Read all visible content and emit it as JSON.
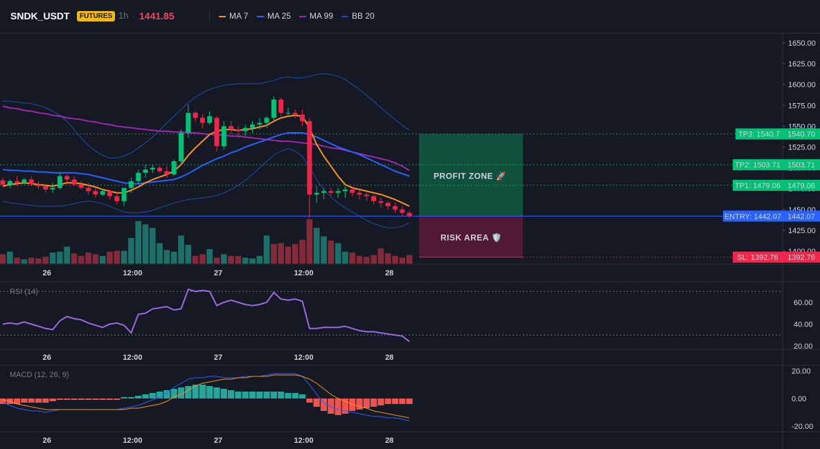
{
  "header": {
    "symbol": "SNDK_USDT",
    "badge": "FUTURES",
    "interval": "1h",
    "price": "1441.85",
    "legend": [
      {
        "label": "MA 7",
        "color": "#f7931a"
      },
      {
        "label": "MA 25",
        "color": "#2962ff"
      },
      {
        "label": "MA 99",
        "color": "#9c27b0"
      },
      {
        "label": "BB 20",
        "color": "#1e4fa8"
      }
    ]
  },
  "panes": {
    "rsi_label": "RSI (14)",
    "macd_label": "MACD (12, 26, 9)"
  },
  "zones": {
    "profit_label": "PROFIT ZONE 🚀",
    "risk_label": "RISK AREA 🛡️"
  },
  "levels": [
    {
      "tag": "TP3: 1540.7",
      "price_label": "1540.70",
      "value": 1540.7,
      "color": "#02c076",
      "kind": "tp"
    },
    {
      "tag": "TP2: 1503.71",
      "price_label": "1503.71",
      "value": 1503.71,
      "color": "#02c076",
      "kind": "tp"
    },
    {
      "tag": "TP1: 1479.06",
      "price_label": "1479.06",
      "value": 1479.06,
      "color": "#02c076",
      "kind": "tp"
    },
    {
      "tag": "ENTRY: 1442.07",
      "price_label": "1442.07",
      "value": 1442.07,
      "color": "#2962ff",
      "kind": "entry"
    },
    {
      "tag": "SL: 1392.76",
      "price_label": "1392.76",
      "value": 1392.76,
      "color": "#f0254a",
      "kind": "sl"
    }
  ],
  "chart_data": [
    {
      "type": "candlestick",
      "title": "SNDK_USDT 1h",
      "x_tick_labels": [
        "26",
        "12:00",
        "27",
        "12:00",
        "28"
      ],
      "y_ticks": [
        1650,
        1625,
        1600,
        1575,
        1550,
        1525,
        1500,
        1475,
        1450,
        1425,
        1400
      ],
      "y_tick_labels": [
        "1650.00",
        "1625.00",
        "1600.00",
        "1575.00",
        "1550.00",
        "1525.00",
        "1500.00",
        "1475.00",
        "1450.00",
        "1425.00",
        "1400.00"
      ],
      "ylim": [
        1392,
        1660
      ],
      "candles": [
        [
          1485,
          1488,
          1478,
          1480
        ],
        [
          1480,
          1486,
          1476,
          1484
        ],
        [
          1484,
          1490,
          1478,
          1482
        ],
        [
          1482,
          1488,
          1480,
          1486
        ],
        [
          1486,
          1490,
          1478,
          1480
        ],
        [
          1480,
          1484,
          1474,
          1478
        ],
        [
          1478,
          1480,
          1470,
          1474
        ],
        [
          1474,
          1482,
          1470,
          1476
        ],
        [
          1476,
          1494,
          1474,
          1490
        ],
        [
          1490,
          1492,
          1482,
          1486
        ],
        [
          1486,
          1490,
          1478,
          1480
        ],
        [
          1480,
          1484,
          1474,
          1476
        ],
        [
          1476,
          1482,
          1468,
          1472
        ],
        [
          1472,
          1476,
          1464,
          1468
        ],
        [
          1468,
          1474,
          1466,
          1472
        ],
        [
          1472,
          1474,
          1462,
          1466
        ],
        [
          1466,
          1470,
          1456,
          1460
        ],
        [
          1460,
          1476,
          1454,
          1476
        ],
        [
          1476,
          1488,
          1470,
          1484
        ],
        [
          1484,
          1498,
          1480,
          1494
        ],
        [
          1494,
          1504,
          1488,
          1498
        ],
        [
          1498,
          1504,
          1494,
          1500
        ],
        [
          1500,
          1502,
          1494,
          1496
        ],
        [
          1496,
          1502,
          1488,
          1492
        ],
        [
          1492,
          1510,
          1490,
          1508
        ],
        [
          1508,
          1546,
          1504,
          1542
        ],
        [
          1542,
          1576,
          1536,
          1566
        ],
        [
          1566,
          1568,
          1556,
          1560
        ],
        [
          1560,
          1564,
          1548,
          1554
        ],
        [
          1554,
          1568,
          1552,
          1562
        ],
        [
          1560,
          1562,
          1520,
          1526
        ],
        [
          1526,
          1556,
          1522,
          1550
        ],
        [
          1550,
          1556,
          1540,
          1546
        ],
        [
          1546,
          1550,
          1536,
          1544
        ],
        [
          1544,
          1552,
          1538,
          1548
        ],
        [
          1548,
          1556,
          1542,
          1552
        ],
        [
          1552,
          1560,
          1546,
          1554
        ],
        [
          1554,
          1562,
          1548,
          1560
        ],
        [
          1560,
          1586,
          1556,
          1582
        ],
        [
          1582,
          1584,
          1562,
          1566
        ],
        [
          1566,
          1572,
          1562,
          1566
        ],
        [
          1566,
          1570,
          1560,
          1564
        ],
        [
          1564,
          1570,
          1550,
          1556
        ],
        [
          1556,
          1560,
          1440,
          1468
        ],
        [
          1468,
          1478,
          1458,
          1470
        ],
        [
          1470,
          1476,
          1462,
          1472
        ],
        [
          1472,
          1476,
          1466,
          1470
        ],
        [
          1470,
          1476,
          1464,
          1472
        ],
        [
          1472,
          1478,
          1464,
          1474
        ],
        [
          1474,
          1478,
          1466,
          1470
        ],
        [
          1470,
          1474,
          1462,
          1468
        ],
        [
          1468,
          1470,
          1460,
          1466
        ],
        [
          1466,
          1468,
          1456,
          1460
        ],
        [
          1460,
          1464,
          1452,
          1458
        ],
        [
          1458,
          1460,
          1450,
          1454
        ],
        [
          1454,
          1458,
          1446,
          1450
        ],
        [
          1450,
          1454,
          1442,
          1446
        ],
        [
          1446,
          1448,
          1440,
          1442
        ]
      ],
      "ma7": [
        1478,
        1480,
        1481,
        1482,
        1481,
        1480,
        1479,
        1478,
        1480,
        1482,
        1482,
        1481,
        1479,
        1477,
        1474,
        1472,
        1470,
        1470,
        1473,
        1477,
        1482,
        1486,
        1489,
        1492,
        1496,
        1504,
        1515,
        1524,
        1532,
        1540,
        1544,
        1546,
        1546,
        1545,
        1546,
        1547,
        1549,
        1551,
        1556,
        1560,
        1562,
        1563,
        1562,
        1548,
        1528,
        1514,
        1502,
        1490,
        1480,
        1476,
        1474,
        1472,
        1470,
        1468,
        1465,
        1462,
        1458,
        1454
      ],
      "ma25": [
        1498,
        1497,
        1497,
        1496,
        1496,
        1495,
        1495,
        1494,
        1494,
        1494,
        1494,
        1493,
        1492,
        1490,
        1488,
        1486,
        1484,
        1482,
        1481,
        1481,
        1482,
        1483,
        1484,
        1485,
        1486,
        1489,
        1493,
        1498,
        1503,
        1507,
        1511,
        1514,
        1518,
        1521,
        1525,
        1528,
        1531,
        1534,
        1537,
        1540,
        1542,
        1542,
        1542,
        1540,
        1537,
        1533,
        1529,
        1525,
        1522,
        1519,
        1516,
        1512,
        1508,
        1504,
        1500,
        1496,
        1493,
        1490
      ],
      "ma99": [
        1574,
        1572,
        1571,
        1569,
        1568,
        1566,
        1565,
        1563,
        1562,
        1560,
        1559,
        1558,
        1556,
        1555,
        1553,
        1552,
        1550,
        1549,
        1548,
        1547,
        1546,
        1545,
        1544,
        1544,
        1543,
        1543,
        1542,
        1542,
        1541,
        1540,
        1540,
        1539,
        1538,
        1538,
        1537,
        1536,
        1535,
        1534,
        1533,
        1532,
        1532,
        1531,
        1530,
        1529,
        1528,
        1526,
        1524,
        1523,
        1521,
        1519,
        1517,
        1515,
        1513,
        1511,
        1509,
        1506,
        1502,
        1497
      ],
      "bb_upper": [
        1580,
        1580,
        1579,
        1578,
        1577,
        1575,
        1572,
        1568,
        1563,
        1556,
        1546,
        1536,
        1527,
        1520,
        1515,
        1512,
        1512,
        1514,
        1518,
        1524,
        1530,
        1537,
        1545,
        1554,
        1562,
        1570,
        1578,
        1585,
        1590,
        1594,
        1597,
        1599,
        1600,
        1601,
        1601,
        1601,
        1601,
        1603,
        1605,
        1608,
        1609,
        1608,
        1608,
        1610,
        1612,
        1613,
        1612,
        1610,
        1606,
        1600,
        1594,
        1587,
        1580,
        1572,
        1565,
        1558,
        1551,
        1545
      ],
      "bb_lower": [
        1460,
        1458,
        1457,
        1456,
        1455,
        1454,
        1454,
        1454,
        1454,
        1455,
        1457,
        1459,
        1460,
        1459,
        1457,
        1454,
        1450,
        1447,
        1446,
        1446,
        1447,
        1449,
        1452,
        1455,
        1458,
        1460,
        1462,
        1463,
        1464,
        1465,
        1467,
        1470,
        1474,
        1479,
        1485,
        1492,
        1500,
        1508,
        1515,
        1520,
        1523,
        1520,
        1514,
        1500,
        1486,
        1474,
        1465,
        1458,
        1452,
        1447,
        1442,
        1437,
        1433,
        1430,
        1428,
        1428,
        1430,
        1434
      ],
      "volume": [
        22,
        28,
        14,
        10,
        14,
        12,
        16,
        26,
        28,
        40,
        24,
        18,
        26,
        22,
        18,
        28,
        30,
        30,
        60,
        100,
        92,
        84,
        48,
        32,
        28,
        66,
        44,
        18,
        22,
        34,
        14,
        22,
        18,
        18,
        14,
        12,
        18,
        66,
        46,
        48,
        40,
        46,
        56,
        104,
        84,
        64,
        54,
        48,
        28,
        26,
        18,
        16,
        20,
        36,
        24,
        18,
        14,
        20
      ],
      "volume_up": [
        0,
        1,
        0,
        1,
        0,
        0,
        0,
        1,
        1,
        1,
        0,
        0,
        0,
        0,
        1,
        0,
        0,
        1,
        1,
        1,
        1,
        1,
        1,
        1,
        1,
        1,
        1,
        0,
        0,
        1,
        0,
        1,
        0,
        0,
        1,
        1,
        1,
        1,
        0,
        0,
        0,
        0,
        0,
        0,
        1,
        1,
        0,
        1,
        1,
        0,
        0,
        0,
        0,
        0,
        0,
        0,
        0,
        0
      ]
    },
    {
      "type": "line",
      "title": "RSI (14)",
      "y_ticks": [
        60,
        40,
        20
      ],
      "y_tick_labels": [
        "60.00",
        "40.00",
        "20.00"
      ],
      "ylim": [
        16,
        82
      ],
      "guide_levels": [
        70,
        30
      ],
      "values": [
        40,
        41,
        40,
        42,
        40,
        38,
        36,
        35,
        43,
        47,
        45,
        44,
        41,
        39,
        37,
        40,
        41,
        39,
        32,
        49,
        50,
        54,
        55,
        56,
        53,
        54,
        72,
        70,
        71,
        70,
        57,
        60,
        62,
        60,
        58,
        57,
        58,
        60,
        69,
        63,
        62,
        63,
        61,
        36,
        36,
        37,
        37,
        37,
        38,
        36,
        34,
        33,
        33,
        32,
        31,
        30,
        29,
        24
      ]
    },
    {
      "type": "bar",
      "title": "MACD (12, 26, 9)",
      "y_ticks": [
        20,
        0,
        -20
      ],
      "y_tick_labels": [
        "20.00",
        "0.00",
        "-20.00"
      ],
      "ylim": [
        -22,
        22
      ],
      "histogram": [
        -4,
        -4,
        -4,
        -3,
        -3,
        -3,
        -3,
        -2,
        -1,
        -1,
        -1,
        -1,
        -1,
        -1,
        -1,
        -1,
        -1,
        1,
        1,
        2,
        3,
        4,
        5,
        6,
        7,
        8,
        9,
        10,
        10,
        9,
        8,
        7,
        6,
        5,
        5,
        5,
        5,
        5,
        5,
        5,
        4,
        4,
        3,
        -3,
        -6,
        -9,
        -11,
        -12,
        -11,
        -9,
        -8,
        -7,
        -6,
        -5,
        -4,
        -4,
        -4,
        -4
      ],
      "macd": [
        -3,
        -5,
        -7,
        -8,
        -9,
        -9,
        -10,
        -9,
        -8,
        -8,
        -8,
        -8,
        -8,
        -8,
        -8,
        -8,
        -8,
        -7,
        -6,
        -5,
        -3,
        -1,
        1,
        4,
        8,
        11,
        14,
        15,
        15,
        16,
        16,
        15,
        15,
        15,
        16,
        16,
        16,
        17,
        18,
        18,
        18,
        18,
        16,
        10,
        3,
        -3,
        -6,
        -8,
        -9,
        -10,
        -11,
        -12,
        -13,
        -13,
        -14,
        -14,
        -15,
        -16
      ],
      "signal": [
        -1,
        -2,
        -4,
        -5,
        -6,
        -7,
        -8,
        -8,
        -8,
        -8,
        -8,
        -8,
        -8,
        -8,
        -8,
        -8,
        -8,
        -8,
        -7,
        -7,
        -6,
        -5,
        -4,
        -2,
        1,
        3,
        6,
        9,
        11,
        12,
        13,
        14,
        14,
        15,
        15,
        16,
        16,
        16,
        17,
        17,
        17,
        17,
        16,
        14,
        11,
        7,
        3,
        0,
        -2,
        -4,
        -6,
        -7,
        -9,
        -10,
        -11,
        -12,
        -13,
        -14
      ]
    }
  ]
}
